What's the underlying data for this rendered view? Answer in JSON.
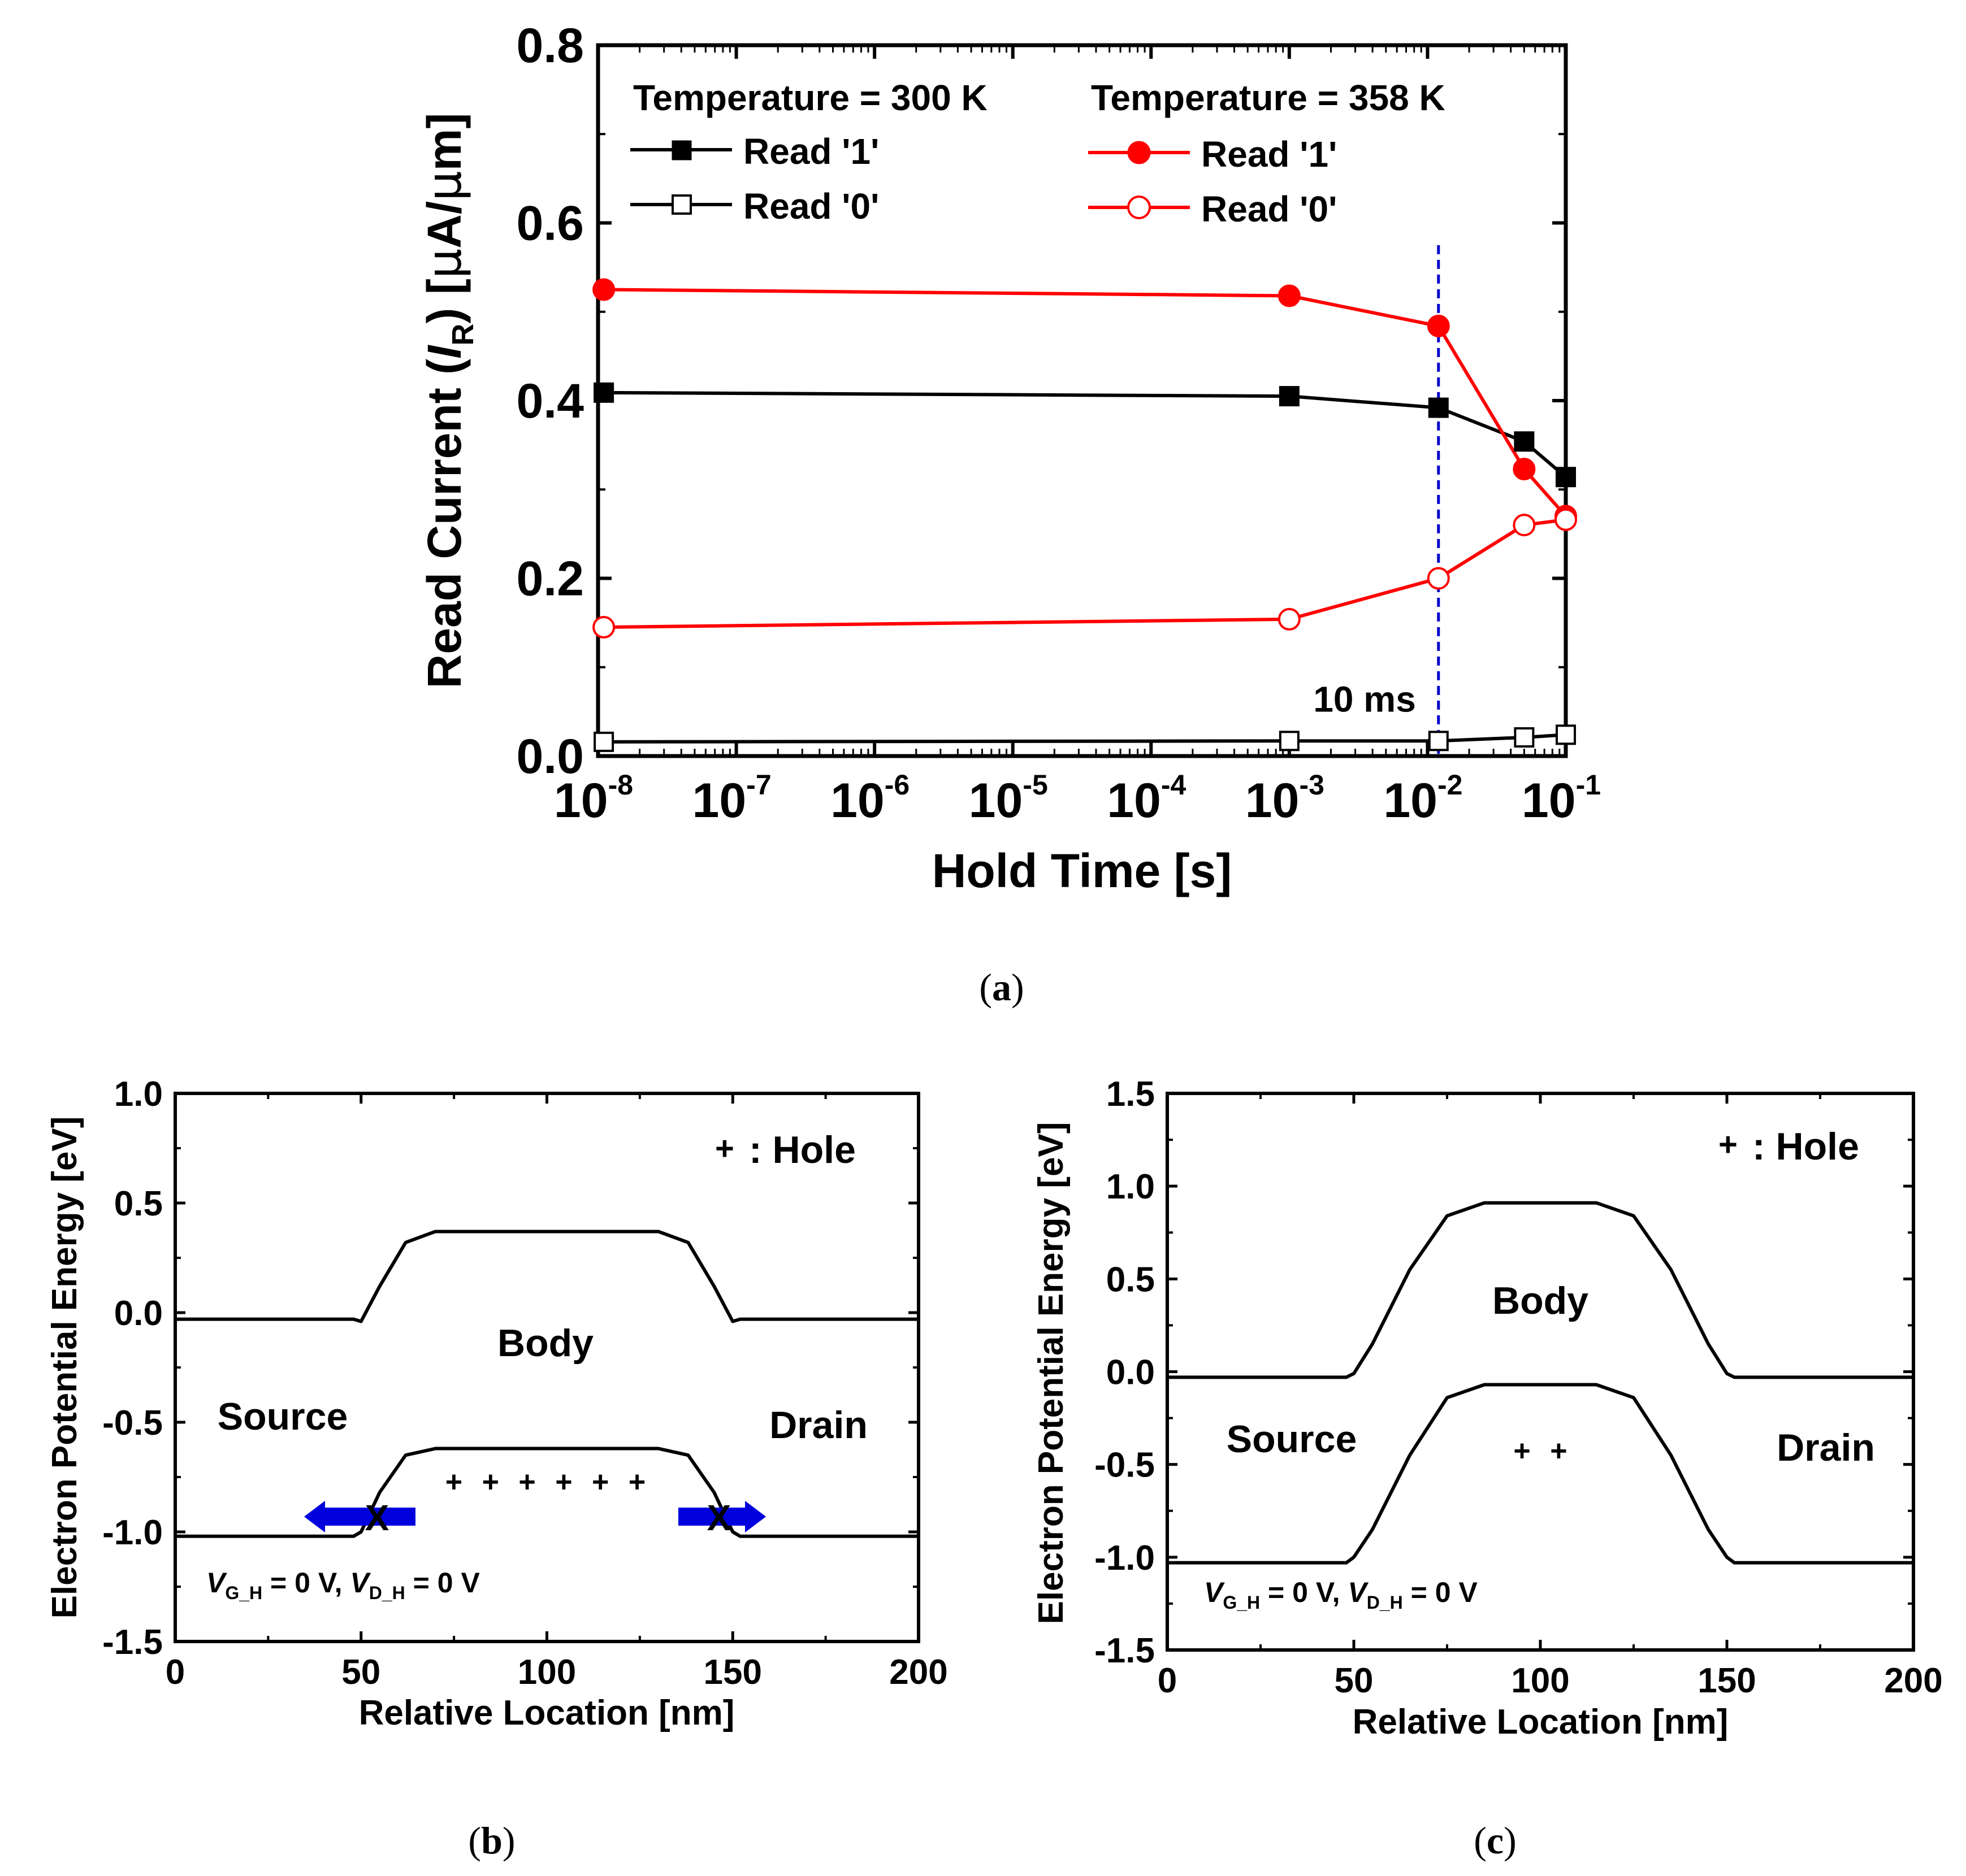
{
  "chart_data": [
    {
      "panel": "a",
      "type": "line",
      "caption": "(a)",
      "xlabel": "Hold Time [s]",
      "xscale": "log",
      "xlim": [
        1e-08,
        0.1
      ],
      "x_tick_labels": [
        {
          "base": "10",
          "exp": "-8"
        },
        {
          "base": "10",
          "exp": "-7"
        },
        {
          "base": "10",
          "exp": "-6"
        },
        {
          "base": "10",
          "exp": "-5"
        },
        {
          "base": "10",
          "exp": "-4"
        },
        {
          "base": "10",
          "exp": "-3"
        },
        {
          "base": "10",
          "exp": "-2"
        },
        {
          "base": "10",
          "exp": "-1"
        }
      ],
      "ylabel": {
        "pre": "Read Current (",
        "italic": "I",
        "sub": "R",
        "post": ") [",
        "mu": "μ",
        "unit": "A/",
        "mu2": "μ",
        "unit2": "m]"
      },
      "ylim": [
        0.0,
        0.8
      ],
      "y_ticks": [
        "0.0",
        "0.2",
        "0.4",
        "0.6",
        "0.8"
      ],
      "legend": {
        "group_300": "Temperature = 300 K",
        "group_358": "Temperature = 358 K"
      },
      "series": [
        {
          "name": "Read '1'",
          "group": "300",
          "color": "#000000",
          "marker": "square",
          "filled": true,
          "x": [
            1.1e-08,
            0.001,
            0.012,
            0.05,
            0.1
          ],
          "values": [
            0.409,
            0.405,
            0.392,
            0.354,
            0.314
          ]
        },
        {
          "name": "Read '0'",
          "group": "300",
          "color": "#000000",
          "marker": "square",
          "filled": false,
          "x": [
            1.1e-08,
            0.001,
            0.012,
            0.05,
            0.1
          ],
          "values": [
            0.016,
            0.017,
            0.017,
            0.021,
            0.024
          ]
        },
        {
          "name": "Read '1'",
          "group": "358",
          "color": "#ff0000",
          "marker": "circle",
          "filled": true,
          "x": [
            1.1e-08,
            0.001,
            0.012,
            0.05,
            0.1
          ],
          "values": [
            0.525,
            0.518,
            0.484,
            0.323,
            0.27
          ]
        },
        {
          "name": "Read '0'",
          "group": "358",
          "color": "#ff0000",
          "marker": "circle",
          "filled": false,
          "x": [
            1.1e-08,
            0.001,
            0.012,
            0.05,
            0.1
          ],
          "values": [
            0.145,
            0.154,
            0.2,
            0.26,
            0.266
          ]
        }
      ],
      "annotations": {
        "vline_x": 0.012,
        "vline_label": "10 ms",
        "vline_color": "#0000cc"
      }
    },
    {
      "panel": "b",
      "type": "line",
      "caption": "(b)",
      "xlabel": "Relative Location [nm]",
      "ylabel": "Electron Potential Energy [eV]",
      "xlim": [
        0,
        200
      ],
      "ylim": [
        -1.5,
        1.0
      ],
      "x_ticks": [
        "0",
        "50",
        "100",
        "150",
        "200"
      ],
      "y_ticks": [
        "1.0",
        "0.5",
        "0.0",
        "-0.5",
        "-1.0",
        "-1.5"
      ],
      "series": [
        {
          "name": "conduction band",
          "color": "#000000",
          "x": [
            0,
            48,
            50,
            55,
            62,
            70,
            130,
            138,
            145,
            150,
            152,
            200
          ],
          "values": [
            -0.03,
            -0.03,
            -0.04,
            0.12,
            0.32,
            0.37,
            0.37,
            0.32,
            0.12,
            -0.04,
            -0.03,
            -0.03
          ]
        },
        {
          "name": "valence band",
          "color": "#000000",
          "x": [
            0,
            48,
            50,
            55,
            62,
            70,
            130,
            138,
            145,
            150,
            152,
            200
          ],
          "values": [
            -1.02,
            -1.02,
            -1.0,
            -0.82,
            -0.65,
            -0.62,
            -0.62,
            -0.65,
            -0.82,
            -1.0,
            -1.02,
            -1.02
          ]
        }
      ],
      "labels": {
        "hole_legend_plus": "+",
        "hole_legend_text": ": Hole",
        "body": "Body",
        "source": "Source",
        "drain": "Drain",
        "holes": "+ + + + + +",
        "marker_x": "X",
        "bias": {
          "v1": "V",
          "s1": "G_H",
          "m1": " = 0 V, ",
          "v2": "V",
          "s2": "D_H",
          "m2": " = 0 V"
        }
      },
      "colors": {
        "hole": "#0000cc",
        "arrow": "#0000dd",
        "cross": "#ff0000"
      }
    },
    {
      "panel": "c",
      "type": "line",
      "caption": "(c)",
      "xlabel": "Relative Location [nm]",
      "ylabel": "Electron Potential Energy [eV]",
      "xlim": [
        0,
        200
      ],
      "ylim": [
        -1.5,
        1.5
      ],
      "x_ticks": [
        "0",
        "50",
        "100",
        "150",
        "200"
      ],
      "y_ticks": [
        "1.5",
        "1.0",
        "0.5",
        "0.0",
        "-0.5",
        "-1.0",
        "-1.5"
      ],
      "series": [
        {
          "name": "conduction band",
          "color": "#000000",
          "x": [
            0,
            48,
            50,
            55,
            65,
            75,
            85,
            115,
            125,
            135,
            145,
            150,
            152,
            200
          ],
          "values": [
            -0.03,
            -0.03,
            -0.01,
            0.15,
            0.55,
            0.84,
            0.91,
            0.91,
            0.84,
            0.55,
            0.15,
            -0.01,
            -0.03,
            -0.03
          ]
        },
        {
          "name": "valence band",
          "color": "#000000",
          "x": [
            0,
            48,
            50,
            55,
            65,
            75,
            85,
            115,
            125,
            135,
            145,
            150,
            152,
            200
          ],
          "values": [
            -1.03,
            -1.03,
            -1.0,
            -0.85,
            -0.45,
            -0.14,
            -0.07,
            -0.07,
            -0.14,
            -0.45,
            -0.85,
            -1.0,
            -1.03,
            -1.03
          ]
        }
      ],
      "labels": {
        "hole_legend_plus": "+",
        "hole_legend_text": ": Hole",
        "body": "Body",
        "source": "Source",
        "drain": "Drain",
        "holes": "+ +",
        "bias": {
          "v1": "V",
          "s1": "G_H",
          "m1": " = 0 V, ",
          "v2": "V",
          "s2": "D_H",
          "m2": " = 0 V"
        }
      },
      "colors": {
        "hole": "#0000cc"
      }
    }
  ]
}
